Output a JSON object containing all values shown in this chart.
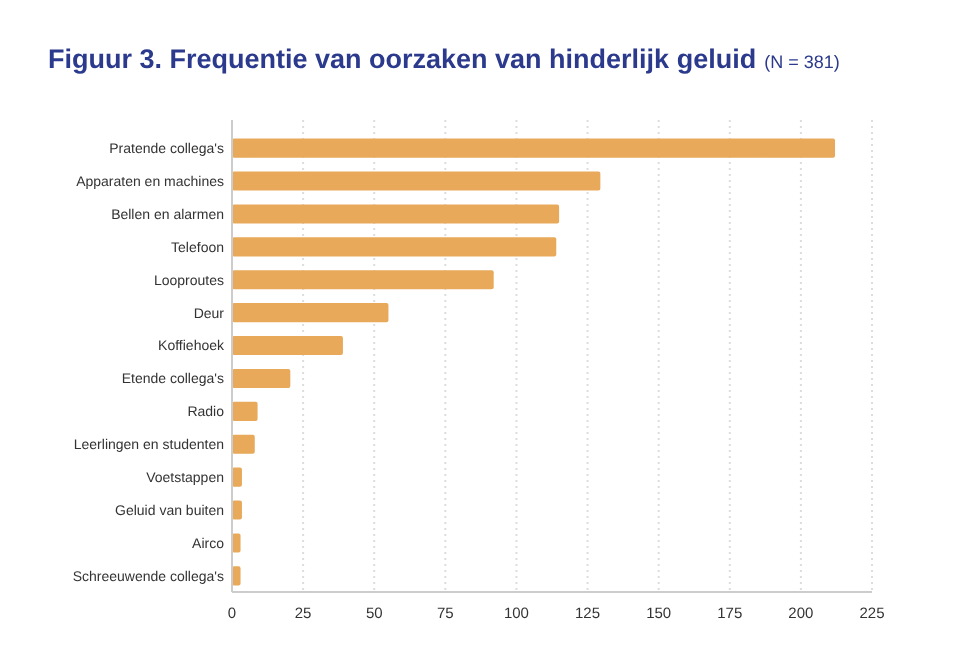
{
  "chart_data": {
    "type": "bar",
    "orientation": "horizontal",
    "title": "Figuur 3. Frequentie van oorzaken van hinderlijk geluid",
    "subtitle": "(N = 381)",
    "categories": [
      "Pratende collega's",
      "Apparaten en machines",
      "Bellen en alarmen",
      "Telefoon",
      "Looproutes",
      "Deur",
      "Koffiehoek",
      "Etende collega's",
      "Radio",
      "Leerlingen en studenten",
      "Voetstappen",
      "Geluid van buiten",
      "Airco",
      "Schreeuwende collega's"
    ],
    "values": [
      212,
      129.5,
      115,
      114,
      92,
      55,
      39,
      20.5,
      9,
      8,
      3.5,
      3.5,
      3,
      3
    ],
    "color": "#e8a95a",
    "xlim": [
      0,
      225
    ],
    "xticks": [
      0,
      25,
      50,
      75,
      100,
      125,
      150,
      175,
      200,
      225
    ],
    "grid": "x"
  }
}
